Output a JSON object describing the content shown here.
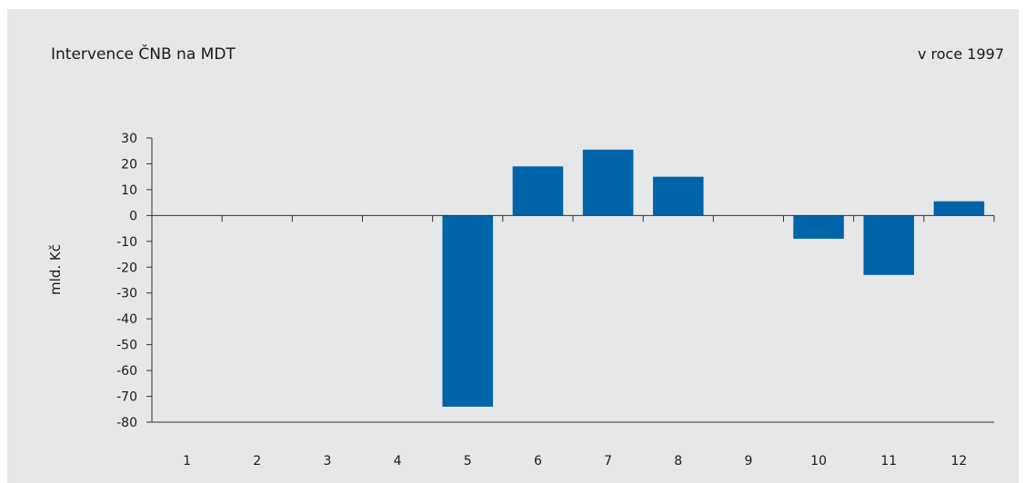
{
  "header": {
    "title": "Intervence ČNB na MDT",
    "subtitle": "v roce 1997"
  },
  "chart_data": {
    "type": "bar",
    "title": "Intervence ČNB na MDT",
    "subtitle": "v roce 1997",
    "xlabel": "",
    "ylabel": "mld. Kč",
    "categories": [
      "1",
      "2",
      "3",
      "4",
      "5",
      "6",
      "7",
      "8",
      "9",
      "10",
      "11",
      "12"
    ],
    "series": [
      {
        "values": [
          0,
          0,
          0,
          0,
          -74,
          19,
          25.5,
          15,
          0,
          -9,
          -23,
          5.5
        ]
      }
    ],
    "ylim": [
      -80,
      30
    ],
    "yticks": [
      30,
      20,
      10,
      0,
      -10,
      -20,
      -30,
      -40,
      -50,
      -60,
      -70,
      -80
    ],
    "bar_color": "#0064a8",
    "background": "#e5e7e9",
    "grid": false,
    "legend": "none"
  }
}
